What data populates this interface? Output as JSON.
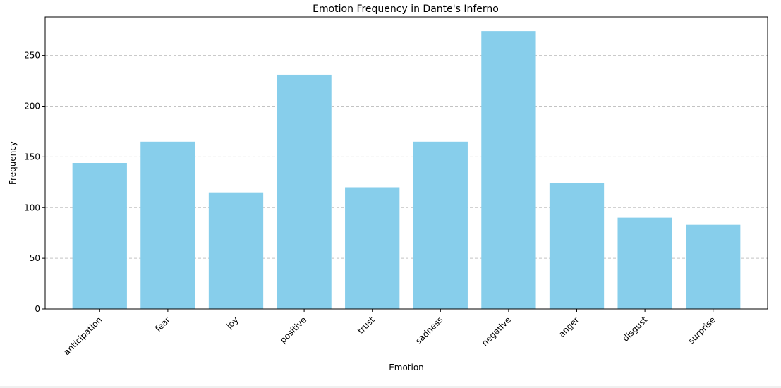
{
  "chart_data": {
    "type": "bar",
    "title": "Emotion Frequency in Dante's Inferno",
    "xlabel": "Emotion",
    "ylabel": "Frequency",
    "categories": [
      "anticipation",
      "fear",
      "joy",
      "positive",
      "trust",
      "sadness",
      "negative",
      "anger",
      "disgust",
      "surprise"
    ],
    "values": [
      144,
      165,
      115,
      231,
      120,
      165,
      274,
      124,
      90,
      83
    ],
    "ylim": [
      0,
      288
    ],
    "yticks": [
      0,
      50,
      100,
      150,
      200,
      250
    ],
    "grid": "y-dashed",
    "bar_color": "#87ceeb",
    "x_tick_rotation": "45"
  }
}
